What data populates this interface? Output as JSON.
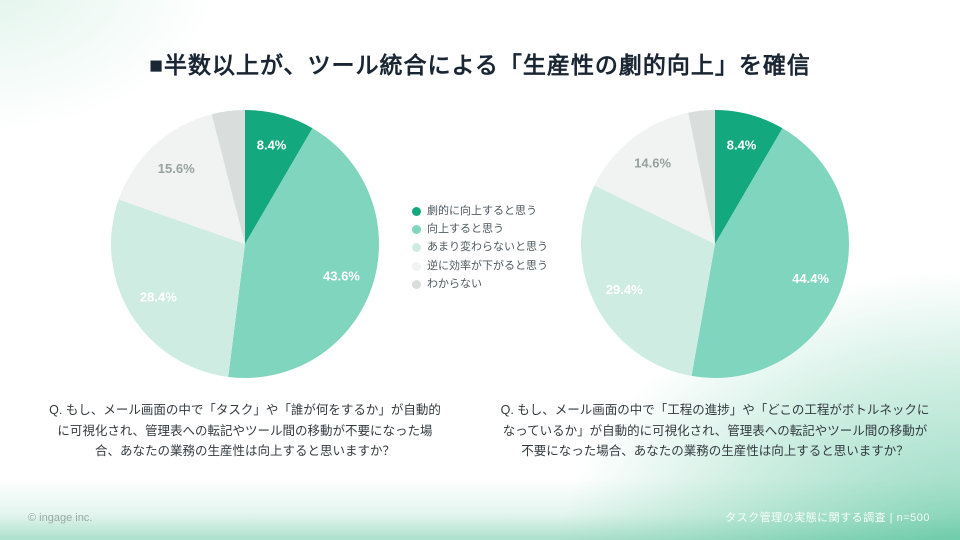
{
  "slide": {
    "title": "■半数以上が、ツール統合による「生産性の劇的向上」を確信"
  },
  "legend": [
    {
      "label": "劇的に向上すると思う",
      "color": "#14a87f"
    },
    {
      "label": "向上すると思う",
      "color": "#7fd5bd"
    },
    {
      "label": "あまり変わらないと思う",
      "color": "#cfece3"
    },
    {
      "label": "逆に効率が下がると思う",
      "color": "#f0f3f2"
    },
    {
      "label": "わからない",
      "color": "#d9dedd"
    }
  ],
  "chart_data": [
    {
      "type": "pie",
      "categories": [
        "劇的に向上すると思う",
        "向上すると思う",
        "あまり変わらないと思う",
        "逆に効率が下がると思う",
        "わからない"
      ],
      "values": [
        8.4,
        43.6,
        28.4,
        15.6,
        4.0
      ],
      "data_labels": [
        "8.4%",
        "43.6%",
        "28.4%",
        "15.6%",
        ""
      ],
      "label_colors": [
        "#ffffff",
        "#ffffff",
        "#ffffff",
        "#97a19e",
        ""
      ],
      "start_angle": "top",
      "direction": "clockwise",
      "question": "Q. もし、メール画面の中で「タスク」や「誰が何をするか」が自動的に可視化され、管理表への転記やツール間の移動が不要になった場合、あなたの業務の生産性は向上すると思いますか？"
    },
    {
      "type": "pie",
      "categories": [
        "劇的に向上すると思う",
        "向上すると思う",
        "あまり変わらないと思う",
        "逆に効率が下がると思う",
        "わからない"
      ],
      "values": [
        8.4,
        44.4,
        29.4,
        14.6,
        3.2
      ],
      "data_labels": [
        "8.4%",
        "44.4%",
        "29.4%",
        "14.6%",
        ""
      ],
      "label_colors": [
        "#ffffff",
        "#ffffff",
        "#ffffff",
        "#97a19e",
        ""
      ],
      "start_angle": "top",
      "direction": "clockwise",
      "question": "Q. もし、メール画面の中で「工程の進捗」や「どこの工程がボトルネックになっているか」が自動的に可視化され、管理表への転記やツール間の移動が不要になった場合、あなたの業務の生産性は向上すると思いますか？"
    }
  ],
  "footer": {
    "copyright": "© ingage inc.",
    "source": "タスク管理の実態に関する調査 | n=500"
  }
}
